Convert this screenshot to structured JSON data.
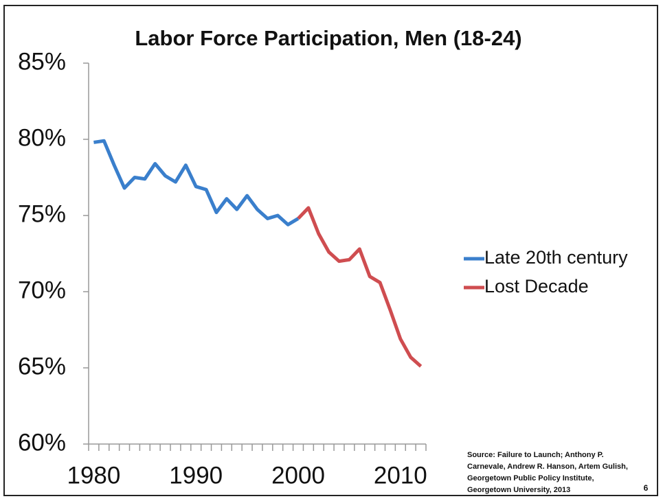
{
  "chart_data": {
    "type": "line",
    "title": "Labor Force Participation, Men (18-24)",
    "series": [
      {
        "name": "Late 20th century",
        "color": "#3a7fcc",
        "x": [
          1980,
          1981,
          1982,
          1983,
          1984,
          1985,
          1986,
          1987,
          1988,
          1989,
          1990,
          1991,
          1992,
          1993,
          1994,
          1995,
          1996,
          1997,
          1998,
          1999,
          2000
        ],
        "values": [
          79.8,
          79.9,
          78.3,
          76.8,
          77.5,
          77.4,
          78.4,
          77.6,
          77.2,
          78.3,
          76.9,
          76.7,
          75.2,
          76.1,
          75.4,
          76.3,
          75.4,
          74.8,
          75.0,
          74.4,
          74.8
        ]
      },
      {
        "name": "Lost Decade",
        "color": "#cf4d50",
        "x": [
          2000,
          2001,
          2002,
          2003,
          2004,
          2005,
          2006,
          2007,
          2008,
          2009,
          2010,
          2011,
          2012
        ],
        "values": [
          74.8,
          75.5,
          73.8,
          72.6,
          72.0,
          72.1,
          72.8,
          71.0,
          70.6,
          68.8,
          66.9,
          65.7,
          65.1
        ]
      }
    ],
    "ylim": [
      60,
      85
    ],
    "yticks": [
      {
        "value": 60,
        "label": "60%"
      },
      {
        "value": 65,
        "label": "65%"
      },
      {
        "value": 70,
        "label": "70%"
      },
      {
        "value": 75,
        "label": "75%"
      },
      {
        "value": 80,
        "label": "80%"
      },
      {
        "value": 85,
        "label": "85%"
      }
    ],
    "xlim": [
      1979.5,
      2012.5
    ],
    "xticks": [
      1980,
      1990,
      2000,
      2010
    ],
    "xminorticks": [
      1979.5,
      1980.5,
      1981.5,
      1982.5,
      1983.5,
      1984.5,
      1985.5,
      1986.5,
      1987.5,
      1988.5,
      1989.5,
      1990.5,
      1991.5,
      1992.5,
      1993.5,
      1994.5,
      1995.5,
      1996.5,
      1997.5,
      1998.5,
      1999.5,
      2000.5,
      2001.5,
      2002.5,
      2003.5,
      2004.5,
      2005.5,
      2006.5,
      2007.5,
      2008.5,
      2009.5,
      2010.5,
      2011.5,
      2012.5
    ],
    "grid": false,
    "legend": "right",
    "source": [
      "Source:  Failure to Launch;  Anthony P.",
      "Carnevale, Andrew R. Hanson, Artem Gulish,",
      "Georgetown  Public Policy Institute,",
      "Georgetown University, 2013"
    ],
    "page_number": "6"
  }
}
